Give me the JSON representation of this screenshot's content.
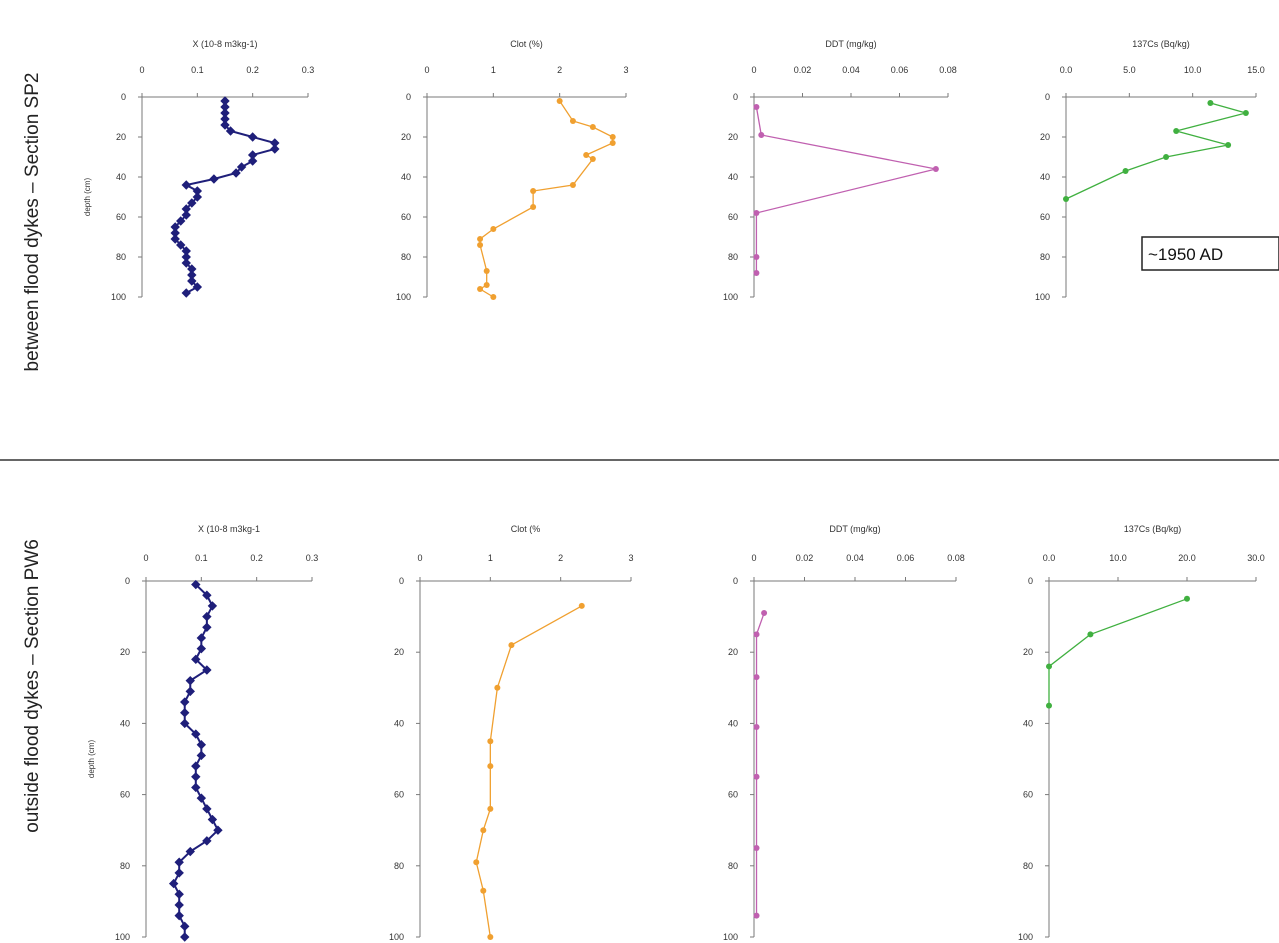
{
  "row_labels": [
    "between flood dykes – Section SP2",
    "outside flood dykes – Section PW6"
  ],
  "colors": {
    "x": "#1f1f7a",
    "clot": "#f0a030",
    "ddt": "#c060b0",
    "cs": "#40b040",
    "axis": "#7a7a7a",
    "divider": "#666666"
  },
  "chart_data": [
    {
      "type": "line",
      "row": 0,
      "panel": "x",
      "title": "X (10-8 m3kg-1)",
      "ylabel": "depth (cm)",
      "xlim": [
        0,
        0.3
      ],
      "xticks": [
        "0",
        "0.1",
        "0.2",
        "0.3"
      ],
      "ylim": [
        0,
        100
      ],
      "yticks": [
        "0",
        "20",
        "40",
        "60",
        "80",
        "100"
      ],
      "y_reversed": true,
      "grid": false,
      "series": [
        {
          "depth": [
            2,
            5,
            8,
            11,
            14,
            17,
            20,
            23,
            26,
            29,
            32,
            35,
            38,
            41,
            44,
            47,
            50,
            53,
            56,
            59,
            62,
            65,
            68,
            71,
            74,
            77,
            80,
            83,
            86,
            89,
            92,
            95,
            98
          ],
          "values": [
            0.15,
            0.15,
            0.15,
            0.15,
            0.15,
            0.16,
            0.2,
            0.24,
            0.24,
            0.2,
            0.2,
            0.18,
            0.17,
            0.13,
            0.08,
            0.1,
            0.1,
            0.09,
            0.08,
            0.08,
            0.07,
            0.06,
            0.06,
            0.06,
            0.07,
            0.08,
            0.08,
            0.08,
            0.09,
            0.09,
            0.09,
            0.1,
            0.08
          ]
        }
      ]
    },
    {
      "type": "line",
      "row": 0,
      "panel": "clot",
      "title": "Clot (%)",
      "xlim": [
        0,
        3
      ],
      "xticks": [
        "0",
        "1",
        "2",
        "3"
      ],
      "ylim": [
        0,
        100
      ],
      "yticks": [
        "0",
        "20",
        "40",
        "60",
        "80",
        "100"
      ],
      "y_reversed": true,
      "grid": false,
      "series": [
        {
          "depth": [
            2,
            12,
            15,
            20,
            23,
            29,
            31,
            44,
            47,
            55,
            66,
            71,
            74,
            87,
            94,
            96,
            100
          ],
          "values": [
            2.0,
            2.2,
            2.5,
            2.8,
            2.8,
            2.4,
            2.5,
            2.2,
            1.6,
            1.6,
            1.0,
            0.8,
            0.8,
            0.9,
            0.9,
            0.8,
            1.0
          ]
        }
      ]
    },
    {
      "type": "line",
      "row": 0,
      "panel": "ddt",
      "title": "DDT (mg/kg)",
      "xlim": [
        0,
        0.08
      ],
      "xticks": [
        "0",
        "0.02",
        "0.04",
        "0.06",
        "0.08"
      ],
      "ylim": [
        0,
        100
      ],
      "yticks": [
        "0",
        "20",
        "40",
        "60",
        "80",
        "100"
      ],
      "y_reversed": true,
      "grid": false,
      "series": [
        {
          "depth": [
            5,
            19,
            36,
            58,
            80,
            88
          ],
          "values": [
            0.001,
            0.003,
            0.075,
            0.001,
            0.001,
            0.001
          ]
        }
      ]
    },
    {
      "type": "line",
      "row": 0,
      "panel": "cs",
      "title": "137Cs (Bq/kg)",
      "xlim": [
        0,
        15
      ],
      "xticks": [
        "0.0",
        "5.0",
        "10.0",
        "15.0"
      ],
      "ylim": [
        0,
        100
      ],
      "yticks": [
        "0",
        "20",
        "40",
        "60",
        "80",
        "100"
      ],
      "y_reversed": true,
      "grid": false,
      "annotation": "~1950 AD",
      "series": [
        {
          "depth": [
            3,
            8,
            17,
            24,
            30,
            37,
            51
          ],
          "values": [
            11.4,
            14.2,
            8.7,
            12.8,
            7.9,
            4.7,
            0.0
          ]
        }
      ]
    },
    {
      "type": "line",
      "row": 1,
      "panel": "x",
      "title": "X (10-8 m3kg-1",
      "ylabel": "depth (cm)",
      "xlim": [
        0,
        0.3
      ],
      "xticks": [
        "0",
        "0.1",
        "0.2",
        "0.3"
      ],
      "ylim": [
        0,
        100
      ],
      "yticks": [
        "0",
        "20",
        "40",
        "60",
        "80",
        "100"
      ],
      "y_reversed": true,
      "grid": false,
      "series": [
        {
          "depth": [
            1,
            4,
            7,
            10,
            13,
            16,
            19,
            22,
            25,
            28,
            31,
            34,
            37,
            40,
            43,
            46,
            49,
            52,
            55,
            58,
            61,
            64,
            67,
            70,
            73,
            76,
            79,
            82,
            85,
            88,
            91,
            94,
            97,
            100
          ],
          "values": [
            0.09,
            0.11,
            0.12,
            0.11,
            0.11,
            0.1,
            0.1,
            0.09,
            0.11,
            0.08,
            0.08,
            0.07,
            0.07,
            0.07,
            0.09,
            0.1,
            0.1,
            0.09,
            0.09,
            0.09,
            0.1,
            0.11,
            0.12,
            0.13,
            0.11,
            0.08,
            0.06,
            0.06,
            0.05,
            0.06,
            0.06,
            0.06,
            0.07,
            0.07
          ]
        }
      ]
    },
    {
      "type": "line",
      "row": 1,
      "panel": "clot",
      "title": "Clot (%",
      "xlim": [
        0,
        3
      ],
      "xticks": [
        "0",
        "1",
        "2",
        "3"
      ],
      "ylim": [
        0,
        100
      ],
      "yticks": [
        "0",
        "20",
        "40",
        "60",
        "80",
        "100"
      ],
      "y_reversed": true,
      "grid": false,
      "series": [
        {
          "depth": [
            7,
            18,
            30,
            45,
            52,
            64,
            70,
            79,
            87,
            100
          ],
          "values": [
            2.3,
            1.3,
            1.1,
            1.0,
            1.0,
            1.0,
            0.9,
            0.8,
            0.9,
            1.0
          ]
        }
      ]
    },
    {
      "type": "line",
      "row": 1,
      "panel": "ddt",
      "title": "DDT (mg/kg)",
      "xlim": [
        0,
        0.08
      ],
      "xticks": [
        "0",
        "0.02",
        "0.04",
        "0.06",
        "0.08"
      ],
      "ylim": [
        0,
        100
      ],
      "yticks": [
        "0",
        "20",
        "40",
        "60",
        "80",
        "100"
      ],
      "y_reversed": true,
      "grid": false,
      "series": [
        {
          "depth": [
            9,
            15,
            27,
            41,
            55,
            75,
            94
          ],
          "values": [
            0.004,
            0.001,
            0.001,
            0.001,
            0.001,
            0.001,
            0.001
          ]
        }
      ]
    },
    {
      "type": "line",
      "row": 1,
      "panel": "cs",
      "title": "137Cs (Bq/kg)",
      "xlim": [
        0,
        30
      ],
      "xticks": [
        "0.0",
        "10.0",
        "20.0",
        "30.0"
      ],
      "ylim": [
        0,
        100
      ],
      "yticks": [
        "0",
        "20",
        "40",
        "60",
        "80",
        "100"
      ],
      "y_reversed": true,
      "grid": false,
      "series": [
        {
          "depth": [
            5,
            15,
            24,
            35
          ],
          "values": [
            20.0,
            6.0,
            0.0,
            0.0
          ]
        }
      ]
    }
  ]
}
